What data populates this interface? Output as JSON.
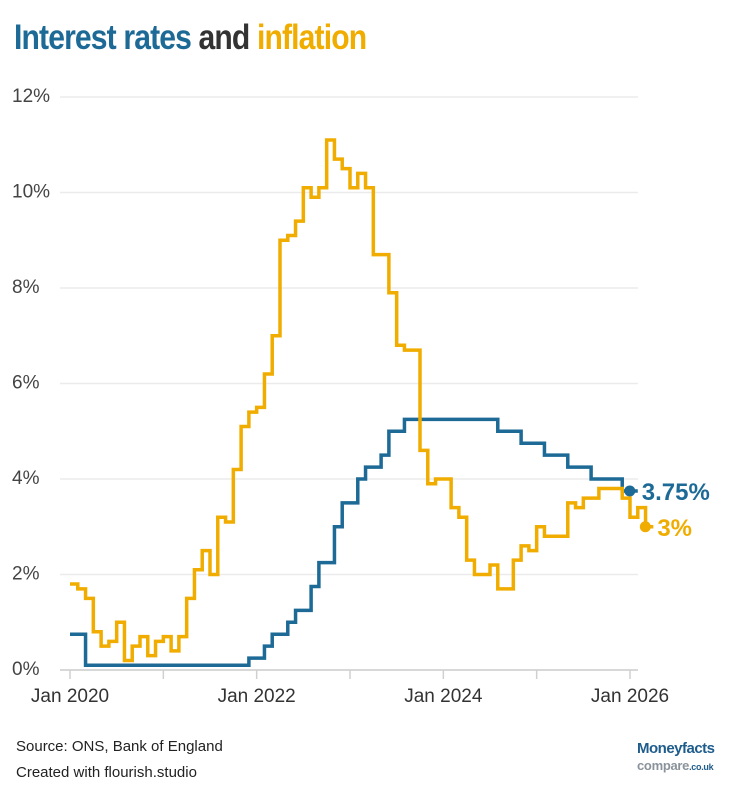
{
  "title": {
    "part1": "Interest rates",
    "part2": " and ",
    "part3": "inflation"
  },
  "footer": {
    "source": "Source: ONS, Bank of England",
    "credit": "Created with flourish.studio"
  },
  "logo": {
    "line1": "Moneyfacts",
    "line2": "compare",
    "line2_suffix": ".co.uk"
  },
  "chart_data": {
    "type": "line",
    "step": true,
    "x_start": "2020-01",
    "x_frequency": "monthly",
    "x_ticks": [
      "Jan 2020",
      "",
      "Jan 2022",
      "",
      "Jan 2024",
      "",
      "Jan 2026"
    ],
    "y_ticks": [
      "0%",
      "2%",
      "4%",
      "6%",
      "8%",
      "10%",
      "12%"
    ],
    "ylim": [
      0,
      12
    ],
    "grid": true,
    "colors": {
      "interest": "#1d6a96",
      "inflation": "#f0ad00"
    },
    "series": [
      {
        "key": "interest",
        "end_label": "3.75%",
        "values": [
          0.75,
          0.75,
          0.1,
          0.1,
          0.1,
          0.1,
          0.1,
          0.1,
          0.1,
          0.1,
          0.1,
          0.1,
          0.1,
          0.1,
          0.1,
          0.1,
          0.1,
          0.1,
          0.1,
          0.1,
          0.1,
          0.1,
          0.1,
          0.25,
          0.25,
          0.5,
          0.75,
          0.75,
          1.0,
          1.25,
          1.25,
          1.75,
          2.25,
          2.25,
          3.0,
          3.5,
          3.5,
          4.0,
          4.25,
          4.25,
          4.5,
          5.0,
          5.0,
          5.25,
          5.25,
          5.25,
          5.25,
          5.25,
          5.25,
          5.25,
          5.25,
          5.25,
          5.25,
          5.25,
          5.25,
          5.0,
          5.0,
          5.0,
          4.75,
          4.75,
          4.75,
          4.5,
          4.5,
          4.5,
          4.25,
          4.25,
          4.25,
          4.0,
          4.0,
          4.0,
          4.0,
          3.75,
          3.75
        ]
      },
      {
        "key": "inflation",
        "end_label": "3%",
        "values": [
          1.8,
          1.7,
          1.5,
          0.8,
          0.5,
          0.6,
          1.0,
          0.2,
          0.5,
          0.7,
          0.3,
          0.6,
          0.7,
          0.4,
          0.7,
          1.5,
          2.1,
          2.5,
          2.0,
          3.2,
          3.1,
          4.2,
          5.1,
          5.4,
          5.5,
          6.2,
          7.0,
          9.0,
          9.1,
          9.4,
          10.1,
          9.9,
          10.1,
          11.1,
          10.7,
          10.5,
          10.1,
          10.4,
          10.1,
          8.7,
          8.7,
          7.9,
          6.8,
          6.7,
          6.7,
          4.6,
          3.9,
          4.0,
          4.0,
          3.4,
          3.2,
          2.3,
          2.0,
          2.0,
          2.2,
          1.7,
          1.7,
          2.3,
          2.6,
          2.5,
          3.0,
          2.8,
          2.8,
          2.8,
          3.5,
          3.4,
          3.6,
          3.6,
          3.8,
          3.8,
          3.8,
          3.6,
          3.2,
          3.4,
          3.0
        ]
      }
    ]
  }
}
